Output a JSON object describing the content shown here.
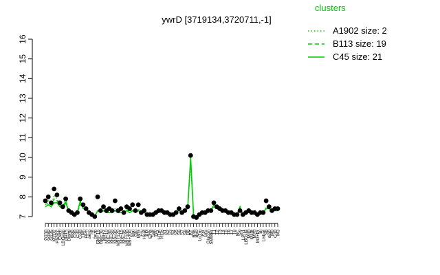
{
  "chart_data": {
    "type": "line",
    "title": "ywrD [3719134,3720711,-1]",
    "xlabel": "",
    "ylabel": "",
    "ylim": [
      7,
      16
    ],
    "yticks": [
      7,
      8,
      9,
      10,
      11,
      12,
      13,
      14,
      15,
      16
    ],
    "grid": false,
    "legend": {
      "title": "clusters",
      "placement": "top-right",
      "items": [
        {
          "label": "A1902 size: 2",
          "style": "dotted",
          "color": "#00cc00"
        },
        {
          "label": "B113 size: 19",
          "style": "dashed",
          "color": "#00cc00"
        },
        {
          "label": "C45 size: 21",
          "style": "solid",
          "color": "#00cc00"
        }
      ]
    },
    "xticklabels": [
      "G150",
      "G180",
      "G135",
      "M2D2",
      "Pa/acc",
      "Oxctl",
      "LBGexp",
      "dia15",
      "Diami",
      "dia5",
      "C90",
      "C30",
      "Cold",
      "LPh",
      "HPh",
      "aero",
      "nit",
      "ferm",
      "GM+15",
      "GM+30",
      "M9+2",
      "M9+10",
      "M9+30",
      "M9+60",
      "M9+90",
      "M9+120",
      "M9+15",
      "M9+45",
      "M9+180",
      "M9+200",
      "Mal",
      "Glu",
      "M/G",
      "Fru",
      "Heat",
      "BM",
      "Elha",
      "Salt",
      "Gly",
      "HTm",
      "HGs",
      "S1",
      "S2",
      "S3",
      "S4",
      "S5",
      "S6",
      "S7",
      "S8",
      "B6",
      "BT",
      "B36",
      "B60",
      "LoTm",
      "Pyr",
      "GIS",
      "Glucon",
      "SMMPr",
      "T1",
      "T2",
      "T3",
      "T4",
      "T5",
      "T6",
      "T7",
      "T8",
      "BC",
      "Sw",
      "LPh1",
      "LBGsta",
      "M40",
      "M40t",
      "M20",
      "M3+Pr",
      "Bl",
      "Lisbat",
      "Sp",
      "dia0",
      "M0",
      "C40",
      "M3"
    ],
    "series": [
      {
        "name": "A1902",
        "style": "dotted",
        "color": "#00cc00",
        "values": [
          7.7,
          7.8,
          7.6,
          8.1,
          7.9,
          7.6,
          7.5,
          7.9,
          7.3,
          7.2,
          7.1,
          7.2,
          7.7,
          7.5,
          7.4,
          7.2,
          7.1,
          7.0,
          7.3,
          7.2,
          7.4,
          7.3,
          7.2,
          7.3,
          7.4,
          7.2,
          7.3,
          7.2,
          7.4,
          7.3,
          7.3,
          7.2,
          7.4,
          7.2,
          7.2,
          7.1,
          7.1,
          7.1,
          7.2,
          7.2,
          7.3,
          7.2,
          7.2,
          7.1,
          7.1,
          7.2,
          7.3,
          7.2,
          7.3,
          7.4,
          9.6,
          7.1,
          7.0,
          7.1,
          7.2,
          7.2,
          7.3,
          7.3,
          7.5,
          7.4,
          7.4,
          7.3,
          7.3,
          7.2,
          7.2,
          7.1,
          7.1,
          7.3,
          7.1,
          7.2,
          7.2,
          7.2,
          7.2,
          7.1,
          7.2,
          7.2,
          7.5,
          7.4,
          7.3,
          7.3,
          7.4
        ]
      },
      {
        "name": "B113",
        "style": "dashed",
        "color": "#00cc00",
        "values": [
          7.6,
          7.7,
          7.6,
          7.9,
          7.8,
          7.6,
          7.5,
          7.8,
          7.3,
          7.2,
          7.1,
          7.2,
          7.6,
          7.5,
          7.4,
          7.2,
          7.1,
          7.0,
          7.3,
          7.2,
          7.3,
          7.2,
          7.2,
          7.3,
          7.3,
          7.2,
          7.3,
          7.2,
          7.3,
          7.3,
          7.3,
          7.2,
          7.3,
          7.2,
          7.2,
          7.1,
          7.1,
          7.1,
          7.2,
          7.2,
          7.3,
          7.2,
          7.2,
          7.1,
          7.1,
          7.2,
          7.3,
          7.2,
          7.3,
          7.4,
          9.9,
          7.1,
          7.0,
          7.1,
          7.2,
          7.2,
          7.3,
          7.3,
          7.5,
          7.4,
          7.4,
          7.3,
          7.3,
          7.2,
          7.2,
          7.1,
          7.1,
          7.3,
          7.1,
          7.2,
          7.2,
          7.2,
          7.2,
          7.1,
          7.2,
          7.2,
          7.4,
          7.4,
          7.3,
          7.3,
          7.3
        ]
      },
      {
        "name": "C45",
        "style": "solid",
        "color": "#00cc00",
        "values": [
          7.5,
          7.6,
          7.5,
          7.7,
          7.7,
          7.5,
          7.4,
          7.7,
          7.3,
          7.2,
          7.1,
          7.2,
          7.8,
          7.4,
          7.4,
          7.2,
          7.1,
          7.0,
          7.3,
          7.2,
          7.3,
          7.2,
          7.2,
          7.2,
          7.3,
          7.2,
          7.2,
          7.2,
          7.3,
          7.2,
          7.3,
          7.2,
          7.3,
          7.2,
          7.2,
          7.1,
          7.1,
          7.1,
          7.2,
          7.2,
          7.3,
          7.2,
          7.2,
          7.1,
          7.1,
          7.2,
          7.3,
          7.2,
          7.3,
          7.4,
          10.0,
          7.1,
          7.0,
          7.1,
          7.2,
          7.2,
          7.3,
          7.3,
          7.6,
          7.5,
          7.5,
          7.4,
          7.3,
          7.2,
          7.2,
          7.1,
          7.1,
          7.5,
          7.1,
          7.2,
          7.2,
          7.2,
          7.2,
          7.1,
          7.2,
          7.2,
          7.4,
          7.4,
          7.3,
          7.3,
          7.3
        ]
      }
    ],
    "points": [
      7.8,
      8.0,
      7.7,
      8.4,
      8.1,
      7.7,
      7.5,
      7.9,
      7.3,
      7.2,
      7.1,
      7.2,
      7.9,
      7.6,
      7.4,
      7.2,
      7.1,
      7.0,
      8.0,
      7.3,
      7.5,
      7.3,
      7.4,
      7.3,
      7.8,
      7.3,
      7.4,
      7.2,
      7.5,
      7.4,
      7.6,
      7.3,
      7.6,
      7.2,
      7.3,
      7.1,
      7.1,
      7.1,
      7.2,
      7.3,
      7.3,
      7.2,
      7.2,
      7.1,
      7.1,
      7.2,
      7.4,
      7.2,
      7.3,
      7.5,
      10.1,
      7.0,
      6.95,
      7.1,
      7.2,
      7.2,
      7.3,
      7.3,
      7.7,
      7.5,
      7.4,
      7.3,
      7.3,
      7.2,
      7.2,
      7.1,
      7.1,
      7.3,
      7.1,
      7.2,
      7.3,
      7.2,
      7.2,
      7.1,
      7.2,
      7.2,
      7.8,
      7.5,
      7.3,
      7.4,
      7.4
    ]
  }
}
